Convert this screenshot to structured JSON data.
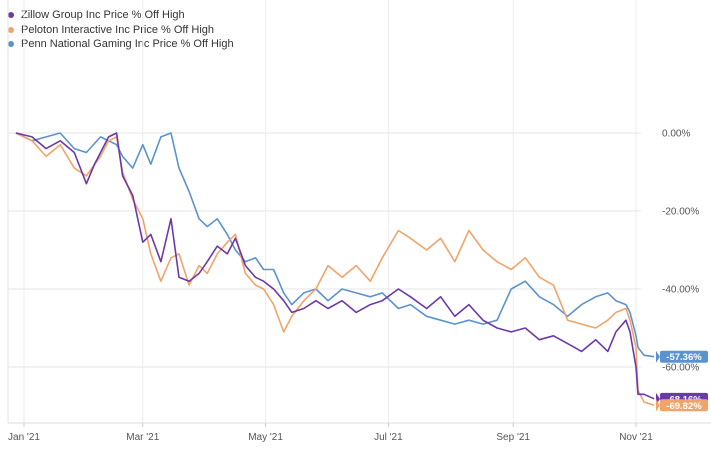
{
  "chart_data": {
    "type": "line",
    "title": "",
    "xlabel": "",
    "ylabel": "",
    "x_tick_labels": [
      "Jan '21",
      "Mar '21",
      "May '21",
      "Jul '21",
      "Sep '21",
      "Nov '21"
    ],
    "y_tick_labels": [
      "0.00%",
      "-20.00%",
      "-40.00%",
      "-60.00%"
    ],
    "ylim": [
      -72,
      0
    ],
    "legend_position": "top-left",
    "grid": true,
    "series": [
      {
        "name": "Zillow Group Inc Price % Off High",
        "color": "#6a3aa6",
        "end_label": "-68.16%",
        "points": [
          [
            "2020-12-28",
            0
          ],
          [
            "2021-01-05",
            -1
          ],
          [
            "2021-01-12",
            -4
          ],
          [
            "2021-01-19",
            -2
          ],
          [
            "2021-01-26",
            -5
          ],
          [
            "2021-02-01",
            -13
          ],
          [
            "2021-02-05",
            -8
          ],
          [
            "2021-02-12",
            -1
          ],
          [
            "2021-02-16",
            0
          ],
          [
            "2021-02-19",
            -11
          ],
          [
            "2021-02-24",
            -16
          ],
          [
            "2021-03-01",
            -28
          ],
          [
            "2021-03-05",
            -26
          ],
          [
            "2021-03-10",
            -33
          ],
          [
            "2021-03-15",
            -22
          ],
          [
            "2021-03-19",
            -37
          ],
          [
            "2021-03-24",
            -38
          ],
          [
            "2021-03-29",
            -36
          ],
          [
            "2021-04-02",
            -33
          ],
          [
            "2021-04-07",
            -29
          ],
          [
            "2021-04-12",
            -31
          ],
          [
            "2021-04-16",
            -27
          ],
          [
            "2021-04-21",
            -34
          ],
          [
            "2021-04-26",
            -37
          ],
          [
            "2021-04-30",
            -38
          ],
          [
            "2021-05-05",
            -40
          ],
          [
            "2021-05-10",
            -43
          ],
          [
            "2021-05-14",
            -46
          ],
          [
            "2021-05-20",
            -45
          ],
          [
            "2021-05-26",
            -43
          ],
          [
            "2021-06-01",
            -45
          ],
          [
            "2021-06-08",
            -43
          ],
          [
            "2021-06-15",
            -46
          ],
          [
            "2021-06-22",
            -44
          ],
          [
            "2021-06-28",
            -43
          ],
          [
            "2021-07-06",
            -40
          ],
          [
            "2021-07-12",
            -42
          ],
          [
            "2021-07-20",
            -45
          ],
          [
            "2021-07-27",
            -42
          ],
          [
            "2021-08-03",
            -47
          ],
          [
            "2021-08-10",
            -44
          ],
          [
            "2021-08-17",
            -48
          ],
          [
            "2021-08-24",
            -50
          ],
          [
            "2021-08-31",
            -51
          ],
          [
            "2021-09-07",
            -50
          ],
          [
            "2021-09-14",
            -53
          ],
          [
            "2021-09-21",
            -52
          ],
          [
            "2021-09-28",
            -54
          ],
          [
            "2021-10-05",
            -56
          ],
          [
            "2021-10-12",
            -53
          ],
          [
            "2021-10-18",
            -56
          ],
          [
            "2021-10-22",
            -51
          ],
          [
            "2021-10-27",
            -48
          ],
          [
            "2021-10-29",
            -51
          ],
          [
            "2021-11-01",
            -60
          ],
          [
            "2021-11-02",
            -67
          ],
          [
            "2021-11-05",
            -67
          ],
          [
            "2021-11-10",
            -68.16
          ]
        ]
      },
      {
        "name": "Peloton Interactive Inc Price % Off High",
        "color": "#f0a46a",
        "end_label": "-69.82%",
        "points": [
          [
            "2020-12-28",
            0
          ],
          [
            "2021-01-05",
            -2
          ],
          [
            "2021-01-12",
            -6
          ],
          [
            "2021-01-19",
            -3
          ],
          [
            "2021-01-26",
            -9
          ],
          [
            "2021-02-01",
            -11
          ],
          [
            "2021-02-08",
            -6
          ],
          [
            "2021-02-12",
            -2
          ],
          [
            "2021-02-16",
            -1
          ],
          [
            "2021-02-19",
            -10
          ],
          [
            "2021-02-24",
            -17
          ],
          [
            "2021-03-01",
            -22
          ],
          [
            "2021-03-05",
            -31
          ],
          [
            "2021-03-10",
            -38
          ],
          [
            "2021-03-15",
            -32
          ],
          [
            "2021-03-19",
            -31
          ],
          [
            "2021-03-24",
            -39
          ],
          [
            "2021-03-29",
            -34
          ],
          [
            "2021-04-02",
            -36
          ],
          [
            "2021-04-07",
            -31
          ],
          [
            "2021-04-12",
            -28
          ],
          [
            "2021-04-16",
            -26
          ],
          [
            "2021-04-21",
            -36
          ],
          [
            "2021-04-26",
            -39
          ],
          [
            "2021-04-30",
            -40
          ],
          [
            "2021-05-05",
            -44
          ],
          [
            "2021-05-10",
            -51
          ],
          [
            "2021-05-14",
            -47
          ],
          [
            "2021-05-20",
            -43
          ],
          [
            "2021-05-26",
            -40
          ],
          [
            "2021-06-01",
            -34
          ],
          [
            "2021-06-08",
            -37
          ],
          [
            "2021-06-15",
            -34
          ],
          [
            "2021-06-22",
            -38
          ],
          [
            "2021-06-28",
            -32
          ],
          [
            "2021-07-06",
            -25
          ],
          [
            "2021-07-12",
            -27
          ],
          [
            "2021-07-20",
            -30
          ],
          [
            "2021-07-27",
            -27
          ],
          [
            "2021-08-03",
            -33
          ],
          [
            "2021-08-10",
            -25
          ],
          [
            "2021-08-17",
            -30
          ],
          [
            "2021-08-24",
            -33
          ],
          [
            "2021-08-31",
            -35
          ],
          [
            "2021-09-07",
            -32
          ],
          [
            "2021-09-14",
            -37
          ],
          [
            "2021-09-21",
            -39
          ],
          [
            "2021-09-28",
            -48
          ],
          [
            "2021-10-05",
            -49
          ],
          [
            "2021-10-12",
            -50
          ],
          [
            "2021-10-18",
            -48
          ],
          [
            "2021-10-22",
            -46
          ],
          [
            "2021-10-27",
            -45
          ],
          [
            "2021-10-29",
            -48
          ],
          [
            "2021-11-01",
            -55
          ],
          [
            "2021-11-02",
            -66
          ],
          [
            "2021-11-05",
            -69
          ],
          [
            "2021-11-10",
            -69.82
          ]
        ]
      },
      {
        "name": "Penn National Gaming Inc Price % Off High",
        "color": "#5a93cf",
        "end_label": "-57.36%",
        "points": [
          [
            "2020-12-28",
            0
          ],
          [
            "2021-01-05",
            -2
          ],
          [
            "2021-01-12",
            -1
          ],
          [
            "2021-01-19",
            0
          ],
          [
            "2021-01-26",
            -4
          ],
          [
            "2021-02-01",
            -5
          ],
          [
            "2021-02-08",
            -1
          ],
          [
            "2021-02-12",
            -2
          ],
          [
            "2021-02-16",
            -3
          ],
          [
            "2021-02-19",
            -6
          ],
          [
            "2021-02-24",
            -9
          ],
          [
            "2021-03-01",
            -3
          ],
          [
            "2021-03-05",
            -8
          ],
          [
            "2021-03-10",
            -1
          ],
          [
            "2021-03-15",
            0
          ],
          [
            "2021-03-19",
            -9
          ],
          [
            "2021-03-24",
            -15
          ],
          [
            "2021-03-29",
            -22
          ],
          [
            "2021-04-02",
            -24
          ],
          [
            "2021-04-07",
            -22
          ],
          [
            "2021-04-12",
            -26
          ],
          [
            "2021-04-16",
            -30
          ],
          [
            "2021-04-21",
            -33
          ],
          [
            "2021-04-26",
            -32
          ],
          [
            "2021-04-30",
            -35
          ],
          [
            "2021-05-05",
            -35
          ],
          [
            "2021-05-10",
            -41
          ],
          [
            "2021-05-14",
            -44
          ],
          [
            "2021-05-20",
            -41
          ],
          [
            "2021-05-26",
            -40
          ],
          [
            "2021-06-01",
            -43
          ],
          [
            "2021-06-08",
            -40
          ],
          [
            "2021-06-15",
            -41
          ],
          [
            "2021-06-22",
            -42
          ],
          [
            "2021-06-28",
            -41
          ],
          [
            "2021-07-06",
            -45
          ],
          [
            "2021-07-12",
            -44
          ],
          [
            "2021-07-20",
            -47
          ],
          [
            "2021-07-27",
            -48
          ],
          [
            "2021-08-03",
            -49
          ],
          [
            "2021-08-10",
            -48
          ],
          [
            "2021-08-17",
            -49
          ],
          [
            "2021-08-24",
            -48
          ],
          [
            "2021-08-31",
            -40
          ],
          [
            "2021-09-07",
            -38
          ],
          [
            "2021-09-14",
            -42
          ],
          [
            "2021-09-21",
            -44
          ],
          [
            "2021-09-28",
            -47
          ],
          [
            "2021-10-05",
            -44
          ],
          [
            "2021-10-12",
            -42
          ],
          [
            "2021-10-18",
            -41
          ],
          [
            "2021-10-22",
            -43
          ],
          [
            "2021-10-27",
            -44
          ],
          [
            "2021-10-29",
            -46
          ],
          [
            "2021-11-01",
            -52
          ],
          [
            "2021-11-02",
            -55
          ],
          [
            "2021-11-05",
            -57
          ],
          [
            "2021-11-10",
            -57.36
          ]
        ]
      }
    ]
  }
}
